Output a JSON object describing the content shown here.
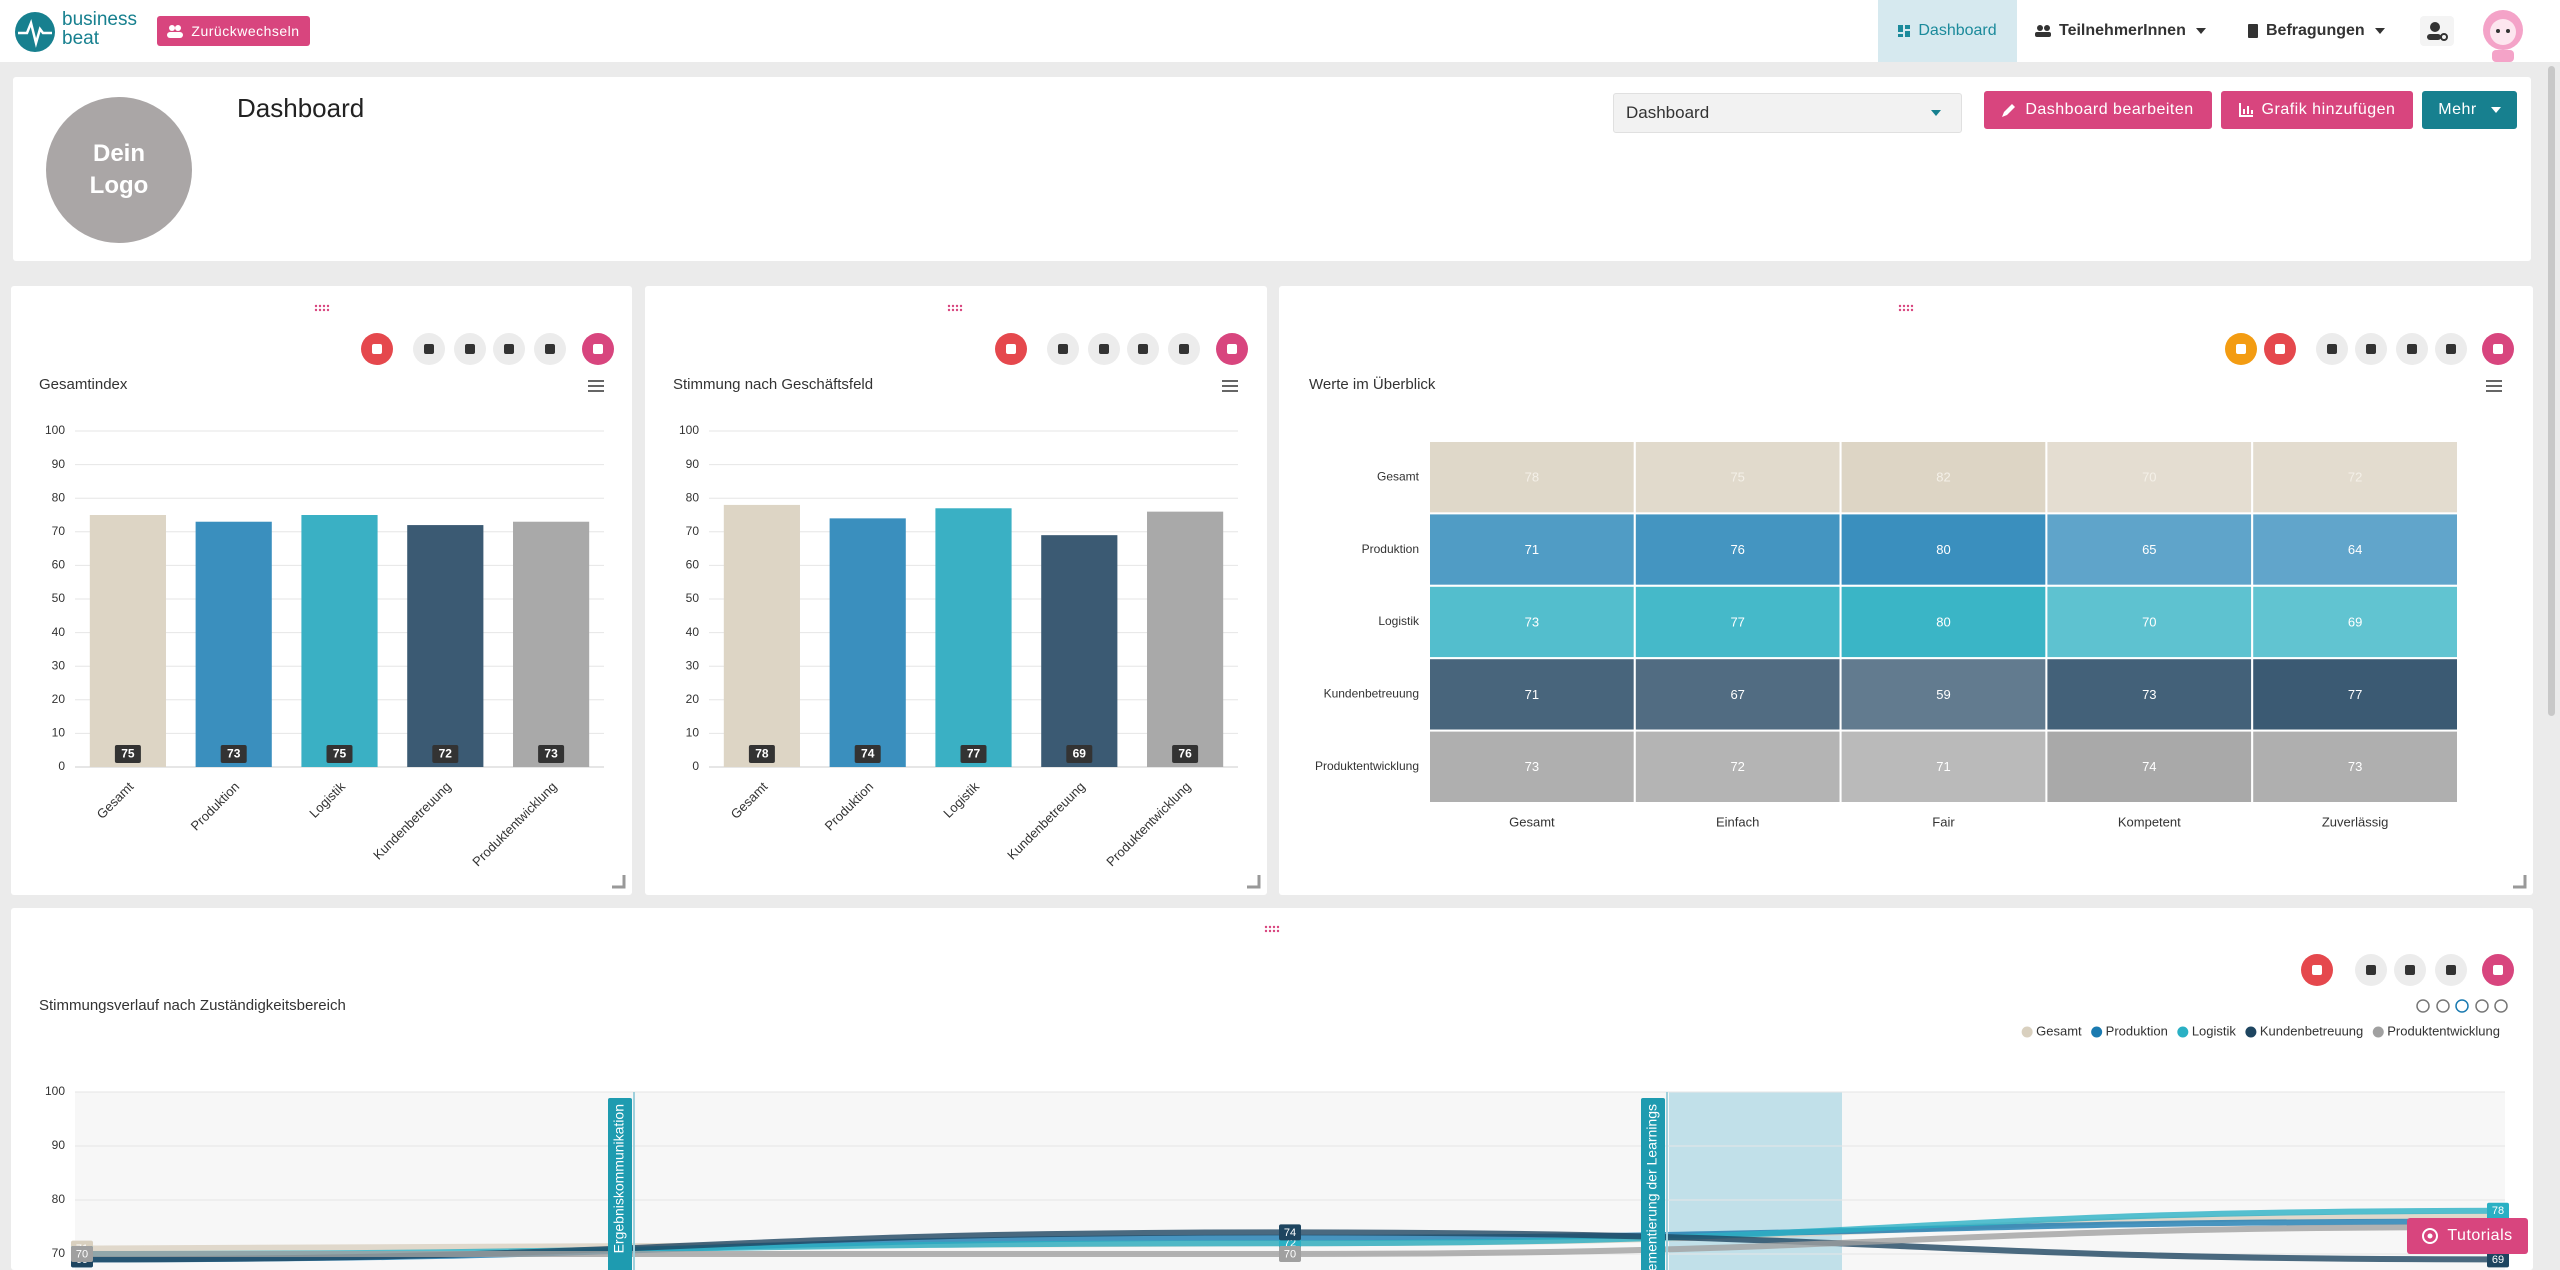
{
  "nav": {
    "brand": [
      "business",
      "beat"
    ],
    "switch_button": "Zurückwechseln",
    "menu": [
      "Dashboard",
      "TeilnehmerInnen",
      "Befragungen"
    ]
  },
  "header": {
    "logo": "Dein Logo",
    "title": "Dashboard",
    "select": "Dashboard",
    "buttons": [
      "Dashboard bearbeiten",
      "Grafik hinzufügen",
      "Mehr"
    ]
  },
  "chart_data": [
    {
      "type": "bar",
      "title": "Gesamtindex",
      "categories": [
        "Gesamt",
        "Produktion",
        "Logistik",
        "Kundenbetreuung",
        "Produktentwicklung"
      ],
      "values": [
        75,
        73,
        75,
        72,
        73
      ],
      "colors": [
        "#ddd5c5",
        "#3a8fbe",
        "#3ab0c4",
        "#3b5a73",
        "#a9a9a9"
      ],
      "ylim": [
        0,
        100
      ],
      "yticks": [
        0,
        10,
        20,
        30,
        40,
        50,
        60,
        70,
        80,
        90,
        100
      ],
      "grid": true
    },
    {
      "type": "bar",
      "title": "Stimmung nach Geschäftsfeld",
      "categories": [
        "Gesamt",
        "Produktion",
        "Logistik",
        "Kundenbetreuung",
        "Produktentwicklung"
      ],
      "values": [
        78,
        74,
        77,
        69,
        76
      ],
      "colors": [
        "#ddd5c5",
        "#3a8fbe",
        "#3ab0c4",
        "#3b5a73",
        "#a9a9a9"
      ],
      "ylim": [
        0,
        100
      ],
      "yticks": [
        0,
        10,
        20,
        30,
        40,
        50,
        60,
        70,
        80,
        90,
        100
      ],
      "grid": true
    },
    {
      "type": "heatmap",
      "title": "Werte im Überblick",
      "x_categories": [
        "Gesamt",
        "Einfach",
        "Fair",
        "Kompetent",
        "Zuverlässig"
      ],
      "y_categories": [
        "Gesamt",
        "Produktion",
        "Logistik",
        "Kundenbetreuung",
        "Produktentwicklung"
      ],
      "values": [
        [
          78,
          75,
          82,
          70,
          72
        ],
        [
          71,
          76,
          80,
          65,
          64
        ],
        [
          73,
          77,
          80,
          70,
          69
        ],
        [
          71,
          67,
          59,
          73,
          77
        ],
        [
          73,
          72,
          71,
          74,
          73
        ]
      ],
      "colors": [
        "#ddd5c5",
        "#3a8fbe",
        "#3ab5c6",
        "#3b5a73",
        "#a9a9a9"
      ]
    },
    {
      "type": "line",
      "title": "Stimmungsverlauf nach Zuständigkeitsbereich",
      "categories": [
        null,
        null,
        null
      ],
      "series": [
        {
          "name": "Gesamt",
          "color": "#d9d0bf",
          "values": [
            71,
            72,
            77
          ]
        },
        {
          "name": "Produktion",
          "color": "#1a7ab0",
          "values": [
            69,
            73,
            76
          ]
        },
        {
          "name": "Logistik",
          "color": "#2ab0c4",
          "values": [
            70,
            72,
            78
          ]
        },
        {
          "name": "Kundenbetreuung",
          "color": "#1e4560",
          "values": [
            69,
            74,
            69
          ]
        },
        {
          "name": "Produktentwicklung",
          "color": "#a0a0a0",
          "values": [
            70,
            70,
            75
          ]
        }
      ],
      "annotations": [
        "Ergebniskommunikation",
        "Implementierung der Learnings"
      ],
      "ylim": [
        60,
        100
      ],
      "yticks": [
        70,
        80,
        90,
        100
      ],
      "grid": true
    }
  ],
  "tutorials": "Tutorials"
}
